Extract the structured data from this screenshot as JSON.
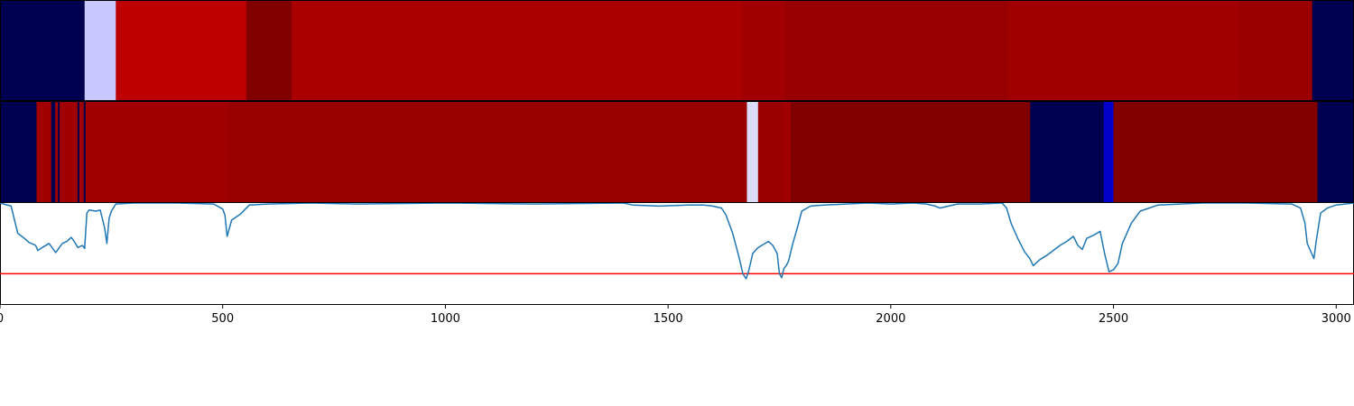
{
  "chart_data": [
    {
      "type": "heatmap",
      "band": "top",
      "segments": [
        {
          "start": 0,
          "end": 190,
          "color": "#000050"
        },
        {
          "start": 190,
          "end": 260,
          "color": "#c8c8ff"
        },
        {
          "start": 260,
          "end": 553,
          "color": "#be0000"
        },
        {
          "start": 553,
          "end": 655,
          "color": "#800000"
        },
        {
          "start": 655,
          "end": 1667,
          "color": "#aa0000"
        },
        {
          "start": 1667,
          "end": 1765,
          "color": "#a00000"
        },
        {
          "start": 1765,
          "end": 2262,
          "color": "#960000"
        },
        {
          "start": 2262,
          "end": 2783,
          "color": "#a00000"
        },
        {
          "start": 2783,
          "end": 2946,
          "color": "#9a0000"
        },
        {
          "start": 2946,
          "end": 3040,
          "color": "#000050"
        }
      ]
    },
    {
      "type": "heatmap",
      "band": "middle",
      "segments": [
        {
          "start": 0,
          "end": 82,
          "color": "#000050"
        },
        {
          "start": 82,
          "end": 115,
          "color": "#a00000"
        },
        {
          "start": 115,
          "end": 124,
          "color": "#000050"
        },
        {
          "start": 124,
          "end": 130,
          "color": "#a00000"
        },
        {
          "start": 130,
          "end": 134,
          "color": "#000050"
        },
        {
          "start": 134,
          "end": 174,
          "color": "#a00000"
        },
        {
          "start": 174,
          "end": 178,
          "color": "#000050"
        },
        {
          "start": 178,
          "end": 188,
          "color": "#a00000"
        },
        {
          "start": 188,
          "end": 192,
          "color": "#000050"
        },
        {
          "start": 192,
          "end": 515,
          "color": "#a00000"
        },
        {
          "start": 515,
          "end": 1677,
          "color": "#980000"
        },
        {
          "start": 1677,
          "end": 1702,
          "color": "#dcdcf8"
        },
        {
          "start": 1702,
          "end": 1760,
          "color": "#9a0000"
        },
        {
          "start": 1760,
          "end": 1775,
          "color": "#a00000"
        },
        {
          "start": 1775,
          "end": 2313,
          "color": "#800000"
        },
        {
          "start": 2313,
          "end": 2478,
          "color": "#000050"
        },
        {
          "start": 2478,
          "end": 2500,
          "color": "#0000c8"
        },
        {
          "start": 2500,
          "end": 2958,
          "color": "#800000"
        },
        {
          "start": 2958,
          "end": 3040,
          "color": "#000050"
        }
      ]
    },
    {
      "type": "line",
      "line_color": "#1f77b4",
      "threshold": {
        "y": 0.7,
        "color": "#ff0000"
      },
      "xlim": [
        0,
        3040
      ],
      "ylim": [
        0,
        1
      ],
      "x_ticks": [
        {
          "value": 0,
          "label": "0"
        },
        {
          "value": 500,
          "label": "500"
        },
        {
          "value": 1000,
          "label": "1000"
        },
        {
          "value": 1500,
          "label": "1500"
        },
        {
          "value": 2000,
          "label": "2000"
        },
        {
          "value": 2500,
          "label": "2500"
        },
        {
          "value": 3000,
          "label": "3000"
        }
      ],
      "x": [
        0,
        25,
        40,
        55,
        65,
        80,
        85,
        95,
        110,
        125,
        140,
        150,
        160,
        165,
        175,
        185,
        190,
        195,
        200,
        215,
        225,
        235,
        240,
        245,
        250,
        260,
        300,
        400,
        480,
        500,
        505,
        510,
        515,
        520,
        540,
        560,
        600,
        700,
        800,
        1000,
        1200,
        1400,
        1420,
        1480,
        1550,
        1580,
        1600,
        1620,
        1630,
        1645,
        1660,
        1668,
        1675,
        1680,
        1690,
        1700,
        1710,
        1725,
        1735,
        1745,
        1750,
        1755,
        1760,
        1765,
        1770,
        1780,
        1790,
        1800,
        1820,
        1850,
        1900,
        1950,
        2000,
        2050,
        2080,
        2100,
        2110,
        2150,
        2200,
        2250,
        2260,
        2270,
        2285,
        2300,
        2312,
        2320,
        2335,
        2350,
        2365,
        2380,
        2395,
        2410,
        2420,
        2430,
        2440,
        2455,
        2470,
        2480,
        2490,
        2500,
        2510,
        2520,
        2540,
        2560,
        2600,
        2650,
        2700,
        2800,
        2900,
        2920,
        2930,
        2935,
        2945,
        2950,
        2955,
        2965,
        2980,
        3000,
        3040
      ],
      "y": [
        0.0,
        0.03,
        0.3,
        0.35,
        0.39,
        0.42,
        0.47,
        0.44,
        0.4,
        0.49,
        0.4,
        0.38,
        0.34,
        0.37,
        0.44,
        0.42,
        0.45,
        0.1,
        0.07,
        0.08,
        0.07,
        0.25,
        0.4,
        0.15,
        0.08,
        0.01,
        0.0,
        0.0,
        0.01,
        0.06,
        0.12,
        0.33,
        0.25,
        0.17,
        0.11,
        0.02,
        0.01,
        0.0,
        0.01,
        0.0,
        0.01,
        0.0,
        0.02,
        0.03,
        0.02,
        0.02,
        0.03,
        0.05,
        0.12,
        0.3,
        0.55,
        0.7,
        0.75,
        0.69,
        0.5,
        0.45,
        0.42,
        0.38,
        0.42,
        0.5,
        0.7,
        0.74,
        0.65,
        0.62,
        0.58,
        0.4,
        0.25,
        0.08,
        0.03,
        0.02,
        0.01,
        0.0,
        0.01,
        0.0,
        0.01,
        0.03,
        0.05,
        0.01,
        0.01,
        0.0,
        0.05,
        0.2,
        0.35,
        0.48,
        0.55,
        0.62,
        0.56,
        0.52,
        0.47,
        0.42,
        0.38,
        0.33,
        0.42,
        0.46,
        0.35,
        0.32,
        0.28,
        0.5,
        0.68,
        0.66,
        0.6,
        0.4,
        0.2,
        0.08,
        0.02,
        0.01,
        0.0,
        0.0,
        0.01,
        0.05,
        0.2,
        0.4,
        0.5,
        0.55,
        0.38,
        0.1,
        0.05,
        0.02,
        0.0
      ]
    }
  ]
}
